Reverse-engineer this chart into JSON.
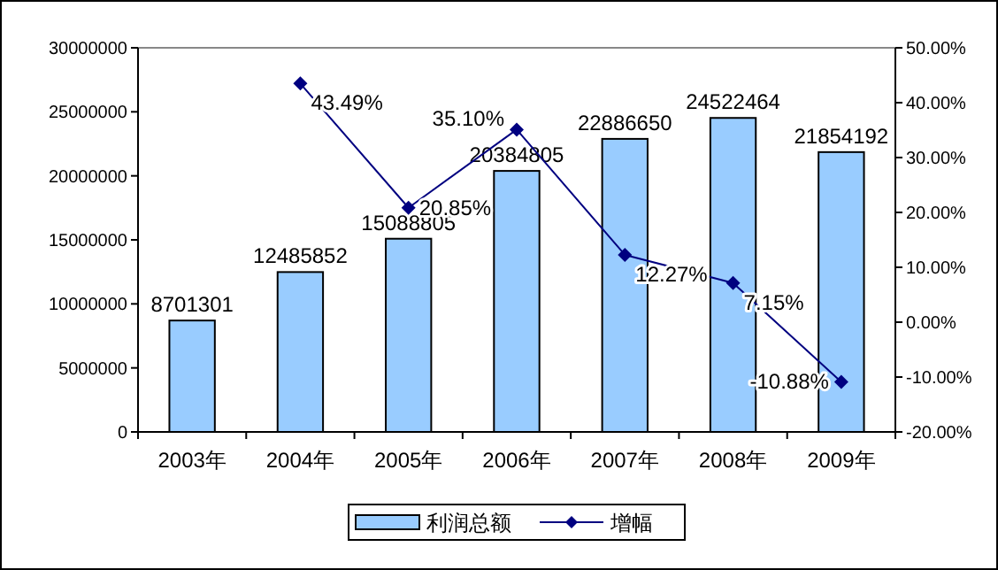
{
  "chart_data": {
    "type": "bar",
    "categories": [
      "2003年",
      "2004年",
      "2005年",
      "2006年",
      "2007年",
      "2008年",
      "2009年"
    ],
    "series": [
      {
        "name": "利润总额",
        "color": "#99ccff",
        "values": [
          8701301,
          12485852,
          15088805,
          20384805,
          22886650,
          24522464,
          21854192
        ],
        "value_labels": [
          "8701301",
          "12485852",
          "15088805",
          "20384805",
          "22886650",
          "24522464",
          "21854192"
        ]
      },
      {
        "name": "增幅",
        "type": "line",
        "axis": "y2",
        "color": "#000080",
        "marker": "diamond",
        "values": [
          null,
          43.49,
          20.85,
          35.1,
          12.27,
          7.15,
          -10.88
        ],
        "value_labels": [
          null,
          "43.49%",
          "20.85%",
          "35.10%",
          "12.27%",
          "7.15%",
          "-10.88%"
        ]
      }
    ],
    "ylim": [
      0,
      30000000
    ],
    "yticks": [
      0,
      5000000,
      10000000,
      15000000,
      20000000,
      25000000,
      30000000
    ],
    "y2lim": [
      -20,
      50
    ],
    "y2ticks": [
      {
        "value": -20,
        "label": "-20.00%"
      },
      {
        "value": -10,
        "label": "-10.00%"
      },
      {
        "value": 0,
        "label": "0.00%"
      },
      {
        "value": 10,
        "label": "10.00%"
      },
      {
        "value": 20,
        "label": "20.00%"
      },
      {
        "value": 30,
        "label": "30.00%"
      },
      {
        "value": 40,
        "label": "40.00%"
      },
      {
        "value": 50,
        "label": "50.00%"
      }
    ],
    "legend": "bottom",
    "grid": false
  }
}
